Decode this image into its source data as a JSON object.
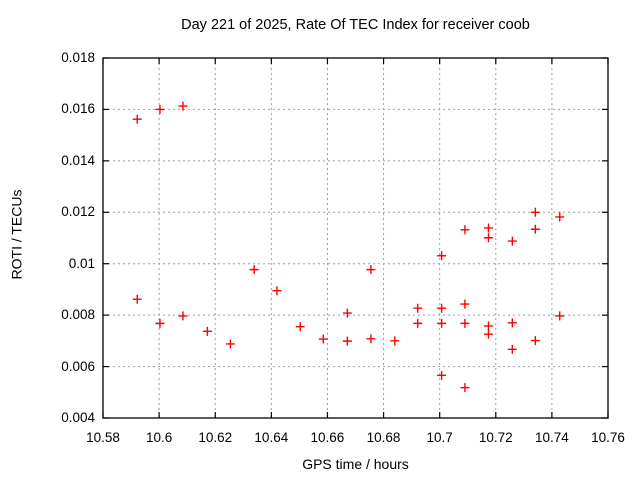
{
  "chart_data": {
    "type": "scatter",
    "title": "Day 221 of 2025, Rate Of TEC Index for receiver coob",
    "xlabel": "GPS time / hours",
    "ylabel": "ROTI / TECUs",
    "xlim": [
      10.58,
      10.76
    ],
    "ylim": [
      0.004,
      0.018
    ],
    "grid": true,
    "legend": "none",
    "background_color": "#ffffff",
    "axis_color": "#000000",
    "grid_color": "#9e9e9e",
    "marker": {
      "shape": "plus",
      "color": "#ff0000",
      "size": 9
    },
    "xticks": [
      {
        "value": 10.58,
        "label": "10.58"
      },
      {
        "value": 10.6,
        "label": "10.6"
      },
      {
        "value": 10.62,
        "label": "10.62"
      },
      {
        "value": 10.64,
        "label": "10.64"
      },
      {
        "value": 10.66,
        "label": "10.66"
      },
      {
        "value": 10.68,
        "label": "10.68"
      },
      {
        "value": 10.7,
        "label": "10.7"
      },
      {
        "value": 10.72,
        "label": "10.72"
      },
      {
        "value": 10.74,
        "label": "10.74"
      },
      {
        "value": 10.76,
        "label": "10.76"
      }
    ],
    "yticks": [
      {
        "value": 0.004,
        "label": "0.004"
      },
      {
        "value": 0.006,
        "label": "0.006"
      },
      {
        "value": 0.008,
        "label": "0.008"
      },
      {
        "value": 0.01,
        "label": "0.01"
      },
      {
        "value": 0.012,
        "label": "0.012"
      },
      {
        "value": 0.014,
        "label": "0.014"
      },
      {
        "value": 0.016,
        "label": "0.016"
      },
      {
        "value": 0.018,
        "label": "0.018"
      }
    ],
    "series": [
      {
        "name": "ROTI",
        "points": [
          [
            10.5922,
            0.01562
          ],
          [
            10.5922,
            0.00862
          ],
          [
            10.6003,
            0.016
          ],
          [
            10.6003,
            0.00768
          ],
          [
            10.6085,
            0.01613
          ],
          [
            10.6085,
            0.00797
          ],
          [
            10.6172,
            0.00737
          ],
          [
            10.6254,
            0.00688
          ],
          [
            10.6339,
            0.00977
          ],
          [
            10.642,
            0.00895
          ],
          [
            10.6503,
            0.00755
          ],
          [
            10.6585,
            0.00707
          ],
          [
            10.6671,
            0.00808
          ],
          [
            10.6671,
            0.00699
          ],
          [
            10.6755,
            0.00977
          ],
          [
            10.6755,
            0.00708
          ],
          [
            10.684,
            0.007
          ],
          [
            10.6922,
            0.00827
          ],
          [
            10.6922,
            0.00768
          ],
          [
            10.7007,
            0.01031
          ],
          [
            10.7007,
            0.00827
          ],
          [
            10.7007,
            0.00768
          ],
          [
            10.7007,
            0.00566
          ],
          [
            10.709,
            0.01132
          ],
          [
            10.709,
            0.00843
          ],
          [
            10.709,
            0.00768
          ],
          [
            10.709,
            0.00518
          ],
          [
            10.7174,
            0.01139
          ],
          [
            10.7174,
            0.01101
          ],
          [
            10.7174,
            0.00758
          ],
          [
            10.7174,
            0.00726
          ],
          [
            10.7259,
            0.01088
          ],
          [
            10.7259,
            0.0077
          ],
          [
            10.7259,
            0.00667
          ],
          [
            10.7341,
            0.012
          ],
          [
            10.7341,
            0.01134
          ],
          [
            10.7341,
            0.00701
          ],
          [
            10.7428,
            0.01182
          ],
          [
            10.7428,
            0.00797
          ]
        ]
      }
    ]
  }
}
